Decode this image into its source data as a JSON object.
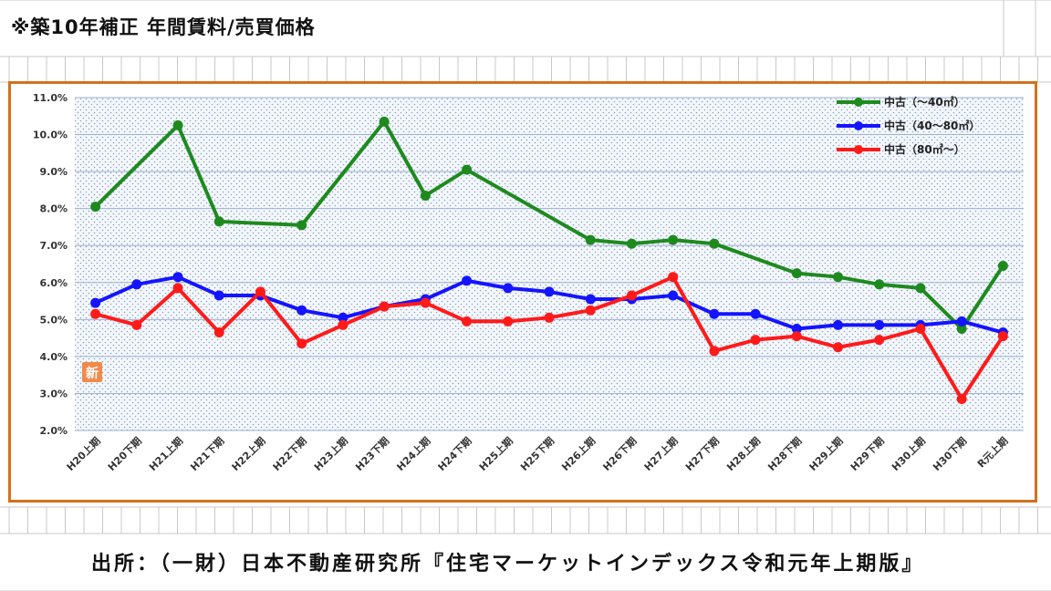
{
  "page": {
    "title": "※築10年補正 年間賃料/売買価格",
    "source": "出所：（一財）日本不動産研究所『住宅マーケットインデックス令和元年上期版』",
    "badge": "新"
  },
  "chart_data": {
    "type": "line",
    "categories": [
      "H20上期",
      "H20下期",
      "H21上期",
      "H21下期",
      "H22上期",
      "H22下期",
      "H23上期",
      "H23下期",
      "H24上期",
      "H24下期",
      "H25上期",
      "H25下期",
      "H26上期",
      "H26下期",
      "H27上期",
      "H27下期",
      "H28上期",
      "H28下期",
      "H29上期",
      "H29下期",
      "H30上期",
      "H30下期",
      "R元上期"
    ],
    "y_ticks": [
      "11.0%",
      "10.0%",
      "9.0%",
      "8.0%",
      "7.0%",
      "6.0%",
      "5.0%",
      "4.0%",
      "3.0%",
      "2.0%"
    ],
    "ylim": [
      2.0,
      11.0
    ],
    "grid": true,
    "legend_position": "top-right",
    "series": [
      {
        "name": "中古（～40㎡）",
        "color": "#1e8a1e",
        "values": [
          8.05,
          null,
          10.25,
          7.65,
          null,
          7.55,
          null,
          10.35,
          8.35,
          9.05,
          null,
          null,
          7.15,
          7.05,
          7.15,
          7.05,
          null,
          6.25,
          6.15,
          5.95,
          5.85,
          4.75,
          6.45
        ]
      },
      {
        "name": "中古（40～80㎡）",
        "color": "#1414ff",
        "values": [
          5.45,
          5.95,
          6.15,
          5.65,
          5.65,
          5.25,
          5.05,
          5.35,
          5.55,
          6.05,
          5.85,
          5.75,
          5.55,
          5.55,
          5.65,
          5.15,
          5.15,
          4.75,
          4.85,
          4.85,
          4.85,
          4.95,
          4.65
        ]
      },
      {
        "name": "中古（80㎡～）",
        "color": "#ff1a1a",
        "values": [
          5.15,
          4.85,
          5.85,
          4.65,
          5.75,
          4.35,
          4.85,
          5.35,
          5.45,
          4.95,
          4.95,
          5.05,
          5.25,
          5.65,
          6.15,
          4.15,
          4.45,
          4.55,
          4.25,
          4.45,
          4.75,
          2.85,
          4.55
        ]
      }
    ]
  }
}
